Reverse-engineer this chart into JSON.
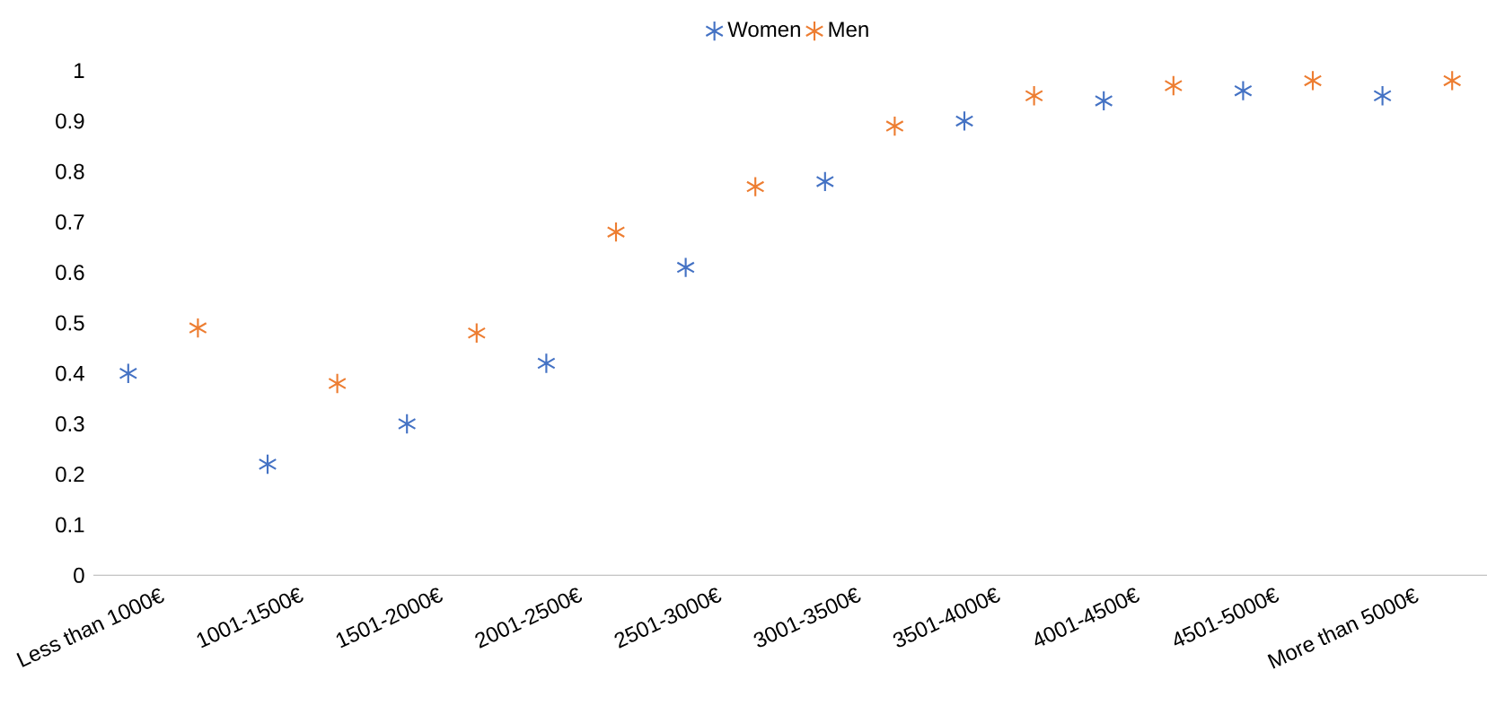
{
  "chart_data": {
    "type": "scatter",
    "categories": [
      "Less than 1000€",
      "1001-1500€",
      "1501-2000€",
      "2001-2500€",
      "2501-3000€",
      "3001-3500€",
      "3501-4000€",
      "4001-4500€",
      "4501-5000€",
      "More than 5000€"
    ],
    "series": [
      {
        "name": "Women",
        "color": "#4472c4",
        "values": [
          0.4,
          0.22,
          0.3,
          0.42,
          0.61,
          0.78,
          0.9,
          0.94,
          0.96,
          0.95
        ]
      },
      {
        "name": "Men",
        "color": "#ed7d31",
        "values": [
          0.49,
          0.38,
          0.48,
          0.68,
          0.77,
          0.89,
          0.95,
          0.97,
          0.98,
          0.98
        ]
      }
    ],
    "ylim": [
      0,
      1
    ],
    "yticks": [
      0,
      0.1,
      0.2,
      0.3,
      0.4,
      0.5,
      0.6,
      0.7,
      0.8,
      0.9,
      1
    ],
    "marker": "cross",
    "legend": "top",
    "grid": false
  }
}
